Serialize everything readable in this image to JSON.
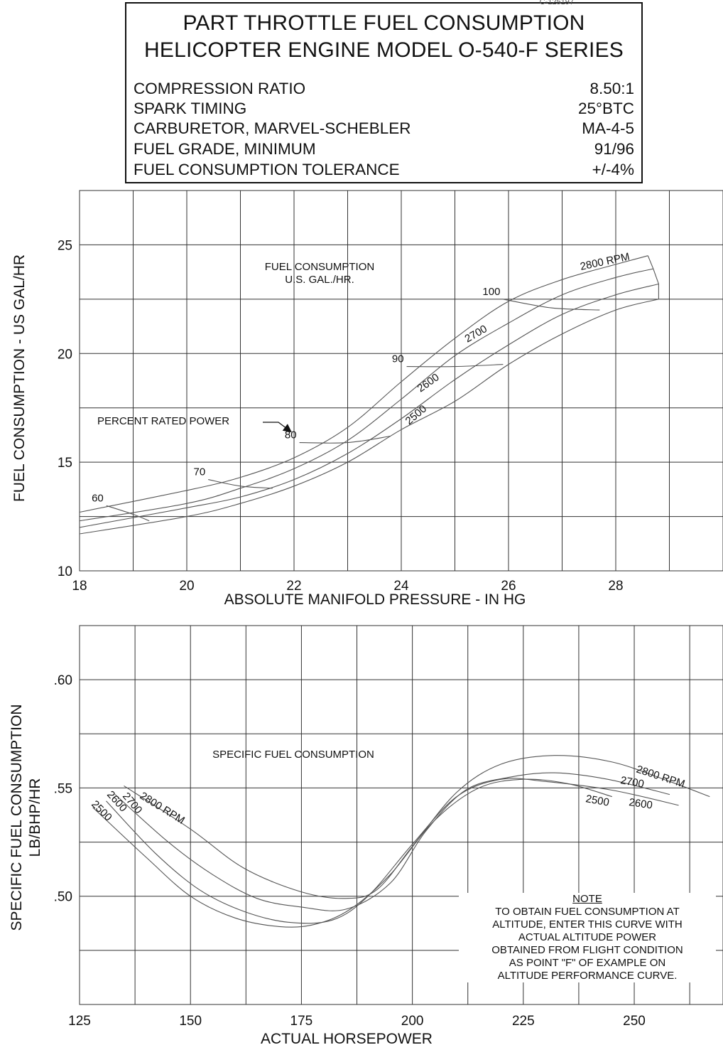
{
  "doc_ref": "C-125197",
  "header": {
    "title_line1": "PART THROTTLE FUEL CONSUMPTION",
    "title_line2": "HELICOPTER ENGINE MODEL O-540-F SERIES",
    "specs": [
      {
        "label": "COMPRESSION RATIO",
        "value": "8.50:1"
      },
      {
        "label": "SPARK TIMING",
        "value": "25°BTC"
      },
      {
        "label": "CARBURETOR, MARVEL-SCHEBLER",
        "value": "MA-4-5"
      },
      {
        "label": "FUEL GRADE, MINIMUM",
        "value": "91/96"
      },
      {
        "label": "FUEL CONSUMPTION TOLERANCE",
        "value": "+/-4%"
      }
    ]
  },
  "chart_data": [
    {
      "type": "line",
      "title": "FUEL CONSUMPTION U.S. GAL./HR.",
      "title_lines": [
        "FUEL CONSUMPTION",
        "U.S. GAL./HR."
      ],
      "xlabel": "ABSOLUTE MANIFOLD PRESSURE - IN HG",
      "ylabel": "FUEL CONSUMPTION - US GAL/HR",
      "xlim": [
        18,
        30
      ],
      "ylim": [
        10,
        27.5
      ],
      "x_ticks": [
        18,
        20,
        22,
        24,
        26,
        28
      ],
      "y_ticks": [
        10,
        15,
        20,
        25
      ],
      "grid": true,
      "series": [
        {
          "name": "2800 RPM",
          "points": [
            [
              18,
              12.7
            ],
            [
              20,
              13.7
            ],
            [
              21,
              14.3
            ],
            [
              22,
              15.2
            ],
            [
              23,
              16.6
            ],
            [
              24,
              18.7
            ],
            [
              25,
              20.7
            ],
            [
              26,
              22.4
            ],
            [
              27,
              23.4
            ],
            [
              28,
              24.1
            ],
            [
              28.6,
              24.5
            ]
          ]
        },
        {
          "name": "2700",
          "points": [
            [
              18,
              12.3
            ],
            [
              20,
              13.1
            ],
            [
              21,
              13.8
            ],
            [
              22,
              14.7
            ],
            [
              23,
              16.0
            ],
            [
              24,
              17.9
            ],
            [
              25,
              19.9
            ],
            [
              26,
              21.4
            ],
            [
              27,
              22.7
            ],
            [
              28,
              23.5
            ],
            [
              28.7,
              23.9
            ]
          ]
        },
        {
          "name": "2600",
          "points": [
            [
              18,
              12.0
            ],
            [
              20,
              12.9
            ],
            [
              21,
              13.4
            ],
            [
              22,
              14.2
            ],
            [
              23,
              15.4
            ],
            [
              24,
              17.0
            ],
            [
              25,
              18.8
            ],
            [
              26,
              20.4
            ],
            [
              27,
              21.8
            ],
            [
              28,
              22.7
            ],
            [
              28.8,
              23.2
            ]
          ]
        },
        {
          "name": "2500",
          "points": [
            [
              18,
              11.7
            ],
            [
              20,
              12.5
            ],
            [
              21,
              13.1
            ],
            [
              22,
              13.9
            ],
            [
              23,
              15.0
            ],
            [
              24,
              16.5
            ],
            [
              25,
              17.8
            ],
            [
              26,
              19.5
            ],
            [
              27,
              20.9
            ],
            [
              28,
              22.0
            ],
            [
              28.8,
              22.5
            ]
          ]
        }
      ],
      "percent_rated_power": [
        {
          "label": "60",
          "points": [
            [
              18.5,
              13.0
            ],
            [
              19.0,
              12.6
            ],
            [
              19.3,
              12.3
            ]
          ]
        },
        {
          "label": "70",
          "points": [
            [
              20.4,
              14.2
            ],
            [
              21.0,
              13.9
            ],
            [
              21.6,
              13.8
            ]
          ]
        },
        {
          "label": "80",
          "points": [
            [
              22.1,
              15.9
            ],
            [
              23.0,
              15.9
            ],
            [
              23.8,
              16.2
            ]
          ]
        },
        {
          "label": "90",
          "points": [
            [
              24.1,
              19.4
            ],
            [
              25.0,
              19.4
            ],
            [
              25.9,
              19.5
            ]
          ]
        },
        {
          "label": "100",
          "points": [
            [
              25.9,
              22.5
            ],
            [
              26.8,
              22.1
            ],
            [
              27.7,
              22.0
            ]
          ]
        }
      ],
      "annotation": "PERCENT RATED POWER",
      "series_labels": [
        "2800 RPM",
        "2700",
        "2600",
        "2500"
      ]
    },
    {
      "type": "line",
      "title": "SPECIFIC FUEL CONSUMPTION",
      "xlabel": "ACTUAL HORSEPOWER",
      "ylabel_lines": [
        "SPECIFIC FUEL CONSUMPTION",
        "LB/BHP/HR"
      ],
      "xlim": [
        125,
        270
      ],
      "ylim": [
        0.45,
        0.625
      ],
      "x_ticks": [
        125,
        150,
        175,
        200,
        225,
        250
      ],
      "y_ticks": [
        0.5,
        0.55,
        0.6
      ],
      "y_tick_labels": [
        ".50",
        ".55",
        ".60"
      ],
      "grid": true,
      "series": [
        {
          "name": "2800 RPM",
          "points": [
            [
              135,
              0.551
            ],
            [
              150,
              0.531
            ],
            [
              162,
              0.513
            ],
            [
              175,
              0.502
            ],
            [
              185,
              0.499
            ],
            [
              192,
              0.503
            ],
            [
              200,
              0.523
            ],
            [
              210,
              0.548
            ],
            [
              220,
              0.561
            ],
            [
              232,
              0.565
            ],
            [
              245,
              0.562
            ],
            [
              258,
              0.553
            ],
            [
              267,
              0.546
            ]
          ]
        },
        {
          "name": "2700",
          "points": [
            [
              133,
              0.547
            ],
            [
              145,
              0.525
            ],
            [
              155,
              0.51
            ],
            [
              165,
              0.499
            ],
            [
              175,
              0.495
            ],
            [
              185,
              0.494
            ],
            [
              195,
              0.506
            ],
            [
              203,
              0.53
            ],
            [
              212,
              0.549
            ],
            [
              222,
              0.555
            ],
            [
              232,
              0.557
            ],
            [
              244,
              0.554
            ],
            [
              258,
              0.547
            ]
          ]
        },
        {
          "name": "2600",
          "points": [
            [
              131,
              0.544
            ],
            [
              142,
              0.52
            ],
            [
              152,
              0.503
            ],
            [
              162,
              0.493
            ],
            [
              172,
              0.488
            ],
            [
              182,
              0.489
            ],
            [
              190,
              0.5
            ],
            [
              200,
              0.524
            ],
            [
              210,
              0.546
            ],
            [
              220,
              0.554
            ],
            [
              230,
              0.553
            ],
            [
              245,
              0.549
            ],
            [
              260,
              0.542
            ]
          ]
        },
        {
          "name": "2500",
          "points": [
            [
              128,
              0.541
            ],
            [
              140,
              0.518
            ],
            [
              150,
              0.5
            ],
            [
              160,
              0.49
            ],
            [
              170,
              0.486
            ],
            [
              178,
              0.487
            ],
            [
              186,
              0.494
            ],
            [
              195,
              0.51
            ],
            [
              205,
              0.535
            ],
            [
              215,
              0.55
            ],
            [
              225,
              0.554
            ],
            [
              235,
              0.552
            ],
            [
              245,
              0.546
            ]
          ]
        }
      ],
      "series_labels_left": [
        "2800 RPM",
        "2700",
        "2600",
        "2500"
      ],
      "series_labels_right": [
        "2800 RPM",
        "2700",
        "2600",
        "2500"
      ],
      "note": {
        "heading": "NOTE",
        "lines": [
          "TO OBTAIN FUEL CONSUMPTION AT",
          "ALTITUDE, ENTER THIS CURVE WITH",
          "ACTUAL ALTITUDE POWER",
          "OBTAINED FROM FLIGHT CONDITION",
          "AS POINT \"F\" OF EXAMPLE ON",
          "ALTITUDE PERFORMANCE CURVE."
        ]
      }
    }
  ]
}
